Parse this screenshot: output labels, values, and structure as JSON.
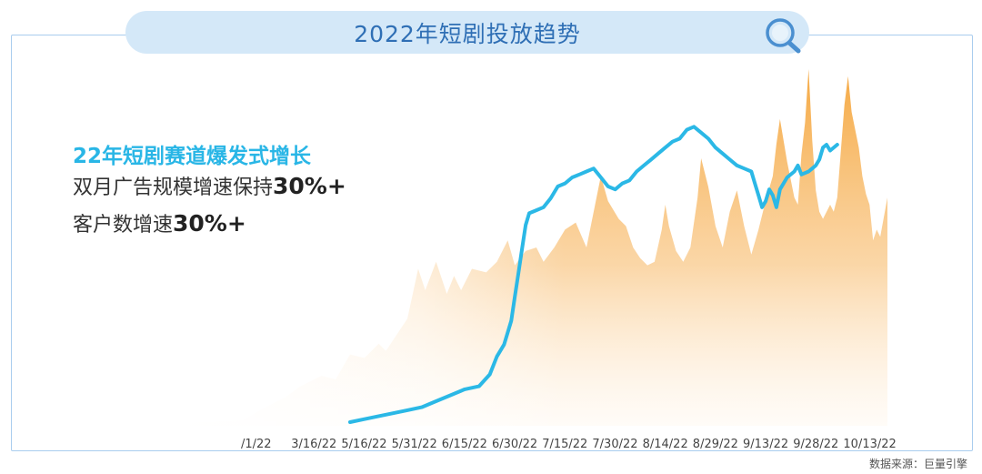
{
  "title": "2022年短剧投放趋势",
  "icons": {
    "title_icon": "magnifier-icon"
  },
  "headline": "22年短剧赛道爆发式增长",
  "sub1": {
    "text": "双月广告规模增速保持",
    "value": "30%+"
  },
  "sub2": {
    "text": "客户数增速",
    "value": "30%+"
  },
  "source": "数据来源：巨量引擎",
  "colors": {
    "line": "#2bb8e6",
    "area_top": "#f5a53a",
    "area_bottom": "#fff4e6",
    "frame": "#a9cdee",
    "title_bg": "#d4e8f8",
    "title_text": "#2f6fb5",
    "headline": "#29b6e6"
  },
  "chart_data": {
    "type": "area+line",
    "title": "2022年短剧投放趋势",
    "x_ticks": [
      "/1/22",
      "3/16/22",
      "5/16/22",
      "5/31/22",
      "6/15/22",
      "6/30/22",
      "7/15/22",
      "7/30/22",
      "8/14/22",
      "8/29/22",
      "9/13/22",
      "9/28/22",
      "10/13/22"
    ],
    "xlim": [
      0,
      1
    ],
    "ylim": [
      0,
      1
    ],
    "y_axis_shown": false,
    "grid": false,
    "legend": "none",
    "series": [
      {
        "kind": "area",
        "relative_values": true,
        "points": [
          [
            0.0,
            0.01
          ],
          [
            0.05,
            0.01
          ],
          [
            0.1,
            0.015
          ],
          [
            0.13,
            0.05
          ],
          [
            0.16,
            0.08
          ],
          [
            0.18,
            0.11
          ],
          [
            0.21,
            0.14
          ],
          [
            0.23,
            0.13
          ],
          [
            0.25,
            0.2
          ],
          [
            0.27,
            0.19
          ],
          [
            0.29,
            0.23
          ],
          [
            0.3,
            0.21
          ],
          [
            0.31,
            0.24
          ],
          [
            0.33,
            0.3
          ],
          [
            0.345,
            0.44
          ],
          [
            0.355,
            0.38
          ],
          [
            0.37,
            0.46
          ],
          [
            0.385,
            0.37
          ],
          [
            0.395,
            0.42
          ],
          [
            0.405,
            0.38
          ],
          [
            0.42,
            0.44
          ],
          [
            0.44,
            0.43
          ],
          [
            0.455,
            0.46
          ],
          [
            0.47,
            0.52
          ],
          [
            0.48,
            0.45
          ],
          [
            0.495,
            0.49
          ],
          [
            0.51,
            0.5
          ],
          [
            0.52,
            0.46
          ],
          [
            0.535,
            0.5
          ],
          [
            0.55,
            0.55
          ],
          [
            0.565,
            0.57
          ],
          [
            0.58,
            0.5
          ],
          [
            0.6,
            0.7
          ],
          [
            0.61,
            0.63
          ],
          [
            0.625,
            0.58
          ],
          [
            0.635,
            0.56
          ],
          [
            0.645,
            0.5
          ],
          [
            0.655,
            0.47
          ],
          [
            0.665,
            0.45
          ],
          [
            0.675,
            0.46
          ],
          [
            0.685,
            0.55
          ],
          [
            0.69,
            0.62
          ],
          [
            0.695,
            0.56
          ],
          [
            0.705,
            0.49
          ],
          [
            0.715,
            0.46
          ],
          [
            0.725,
            0.5
          ],
          [
            0.735,
            0.64
          ],
          [
            0.74,
            0.75
          ],
          [
            0.75,
            0.67
          ],
          [
            0.76,
            0.56
          ],
          [
            0.77,
            0.5
          ],
          [
            0.78,
            0.6
          ],
          [
            0.79,
            0.66
          ],
          [
            0.8,
            0.56
          ],
          [
            0.81,
            0.48
          ],
          [
            0.82,
            0.55
          ],
          [
            0.83,
            0.63
          ],
          [
            0.84,
            0.7
          ],
          [
            0.845,
            0.79
          ],
          [
            0.85,
            0.86
          ],
          [
            0.86,
            0.74
          ],
          [
            0.87,
            0.64
          ],
          [
            0.875,
            0.62
          ],
          [
            0.88,
            0.76
          ],
          [
            0.885,
            0.85
          ],
          [
            0.89,
            1.0
          ],
          [
            0.895,
            0.8
          ],
          [
            0.9,
            0.66
          ],
          [
            0.905,
            0.6
          ],
          [
            0.91,
            0.58
          ],
          [
            0.92,
            0.62
          ],
          [
            0.925,
            0.6
          ],
          [
            0.93,
            0.64
          ],
          [
            0.94,
            0.9
          ],
          [
            0.945,
            0.98
          ],
          [
            0.95,
            0.88
          ],
          [
            0.96,
            0.78
          ],
          [
            0.965,
            0.7
          ],
          [
            0.97,
            0.65
          ],
          [
            0.975,
            0.62
          ],
          [
            0.98,
            0.52
          ],
          [
            0.985,
            0.55
          ],
          [
            0.99,
            0.53
          ],
          [
            1.0,
            0.64
          ]
        ]
      },
      {
        "kind": "line",
        "relative_values": true,
        "points": [
          [
            0.25,
            0.0
          ],
          [
            0.27,
            0.01
          ],
          [
            0.29,
            0.02
          ],
          [
            0.31,
            0.03
          ],
          [
            0.33,
            0.04
          ],
          [
            0.35,
            0.05
          ],
          [
            0.37,
            0.07
          ],
          [
            0.39,
            0.09
          ],
          [
            0.41,
            0.11
          ],
          [
            0.43,
            0.12
          ],
          [
            0.445,
            0.16
          ],
          [
            0.455,
            0.22
          ],
          [
            0.465,
            0.26
          ],
          [
            0.475,
            0.34
          ],
          [
            0.48,
            0.42
          ],
          [
            0.485,
            0.5
          ],
          [
            0.49,
            0.58
          ],
          [
            0.495,
            0.66
          ],
          [
            0.5,
            0.7
          ],
          [
            0.51,
            0.71
          ],
          [
            0.52,
            0.72
          ],
          [
            0.53,
            0.75
          ],
          [
            0.54,
            0.79
          ],
          [
            0.55,
            0.8
          ],
          [
            0.56,
            0.82
          ],
          [
            0.57,
            0.83
          ],
          [
            0.58,
            0.84
          ],
          [
            0.59,
            0.85
          ],
          [
            0.6,
            0.82
          ],
          [
            0.61,
            0.79
          ],
          [
            0.62,
            0.78
          ],
          [
            0.63,
            0.8
          ],
          [
            0.64,
            0.81
          ],
          [
            0.65,
            0.84
          ],
          [
            0.66,
            0.86
          ],
          [
            0.67,
            0.88
          ],
          [
            0.68,
            0.9
          ],
          [
            0.69,
            0.92
          ],
          [
            0.7,
            0.94
          ],
          [
            0.71,
            0.95
          ],
          [
            0.72,
            0.98
          ],
          [
            0.73,
            0.99
          ],
          [
            0.74,
            0.97
          ],
          [
            0.75,
            0.95
          ],
          [
            0.76,
            0.92
          ],
          [
            0.77,
            0.9
          ],
          [
            0.78,
            0.88
          ],
          [
            0.79,
            0.86
          ],
          [
            0.8,
            0.85
          ],
          [
            0.81,
            0.84
          ],
          [
            0.815,
            0.8
          ],
          [
            0.82,
            0.76
          ],
          [
            0.825,
            0.72
          ],
          [
            0.83,
            0.74
          ],
          [
            0.835,
            0.78
          ],
          [
            0.84,
            0.76
          ],
          [
            0.845,
            0.72
          ],
          [
            0.85,
            0.78
          ],
          [
            0.86,
            0.82
          ],
          [
            0.87,
            0.84
          ],
          [
            0.875,
            0.86
          ],
          [
            0.88,
            0.83
          ],
          [
            0.89,
            0.84
          ],
          [
            0.895,
            0.85
          ],
          [
            0.9,
            0.86
          ],
          [
            0.905,
            0.88
          ],
          [
            0.91,
            0.92
          ],
          [
            0.915,
            0.93
          ],
          [
            0.92,
            0.91
          ],
          [
            0.93,
            0.93
          ]
        ]
      }
    ]
  }
}
